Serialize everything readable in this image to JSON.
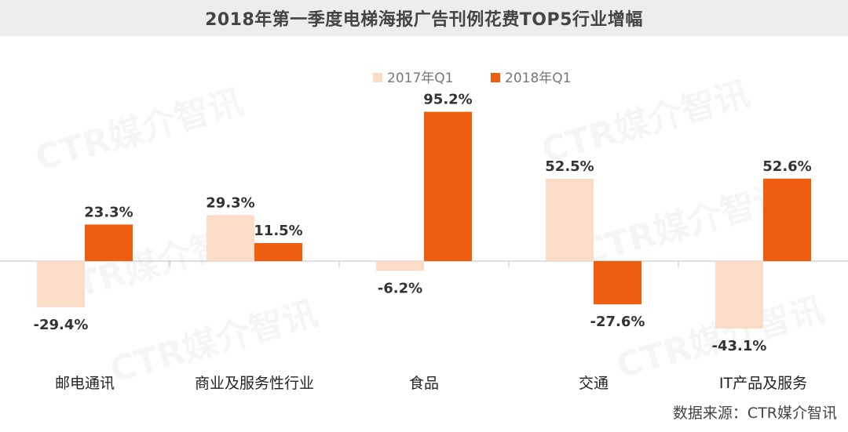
{
  "title": "2018年第一季度电梯海报广告刊例花费TOP5行业增幅",
  "source": "数据来源：CTR媒介智讯",
  "watermark_text": "CTR媒介智讯",
  "colors": {
    "title_bg": "#ededed",
    "series_2017": "#fbdcc6",
    "series_2018": "#ee5e10",
    "label_text": "#333333",
    "axis": "#bfbfbf"
  },
  "chart_data": {
    "type": "bar",
    "categories": [
      "邮电通讯",
      "商业及服务性行业",
      "食品",
      "交通",
      "IT产品及服务"
    ],
    "series": [
      {
        "name": "2017年Q1",
        "values": [
          -29.4,
          29.3,
          -6.2,
          52.5,
          -43.1
        ],
        "labels": [
          "-29.4%",
          "29.3%",
          "-6.2%",
          "52.5%",
          "-43.1%"
        ]
      },
      {
        "name": "2018年Q1",
        "values": [
          23.3,
          11.5,
          95.2,
          -27.6,
          52.6
        ],
        "labels": [
          "23.3%",
          "11.5%",
          "95.2%",
          "-27.6%",
          "52.6%"
        ]
      }
    ],
    "unit": "%",
    "legend": "top-center",
    "grid": false
  }
}
